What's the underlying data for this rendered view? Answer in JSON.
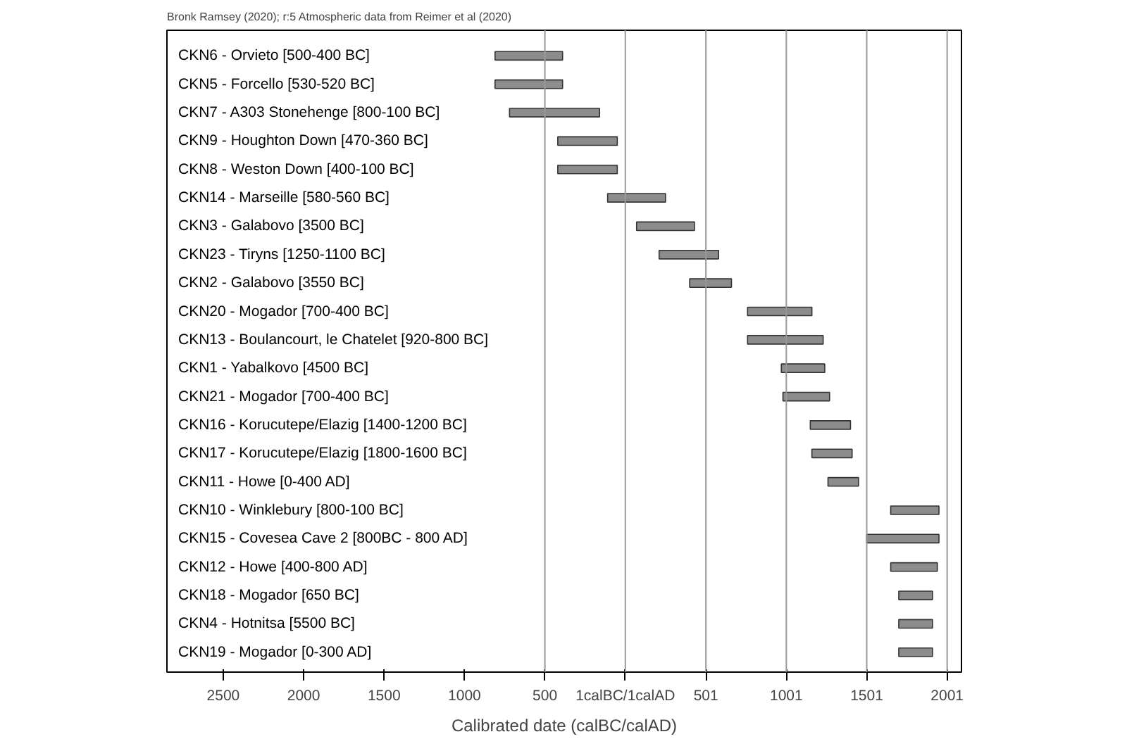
{
  "chart_data": {
    "type": "bar",
    "orientation": "horizontal",
    "subtitle": "Bronk Ramsey (2020); r:5 Atmospheric data from Reimer et al (2020)",
    "xlabel": "Calibrated date (calBC/calAD)",
    "categories": [
      "CKN6 - Orvieto [500-400 BC]",
      "CKN5 - Forcello [530-520 BC]",
      "CKN7 - A303 Stonehenge [800-100 BC]",
      "CKN9 - Houghton Down [470-360 BC]",
      "CKN8 - Weston Down [400-100 BC]",
      "CKN14 - Marseille [580-560 BC]",
      "CKN3 - Galabovo [3500 BC]",
      "CKN23 - Tiryns [1250-1100 BC]",
      "CKN2 - Galabovo [3550 BC]",
      "CKN20 - Mogador [700-400 BC]",
      "CKN13 - Boulancourt, le Chatelet [920-800 BC]",
      "CKN1 - Yabalkovo [4500 BC]",
      "CKN21 - Mogador [700-400 BC]",
      "CKN16 - Korucutepe/Elazig [1400-1200 BC]",
      "CKN17 - Korucutepe/Elazig [1800-1600 BC]",
      "CKN11 - Howe [0-400 AD]",
      "CKN10 - Winklebury [800-100 BC]",
      "CKN15 - Covesea Cave 2 [800BC - 800 AD]",
      "CKN12 - Howe [400-800 AD]",
      "CKN18 - Mogador [650 BC]",
      "CKN4 - Hotnitsa [5500 BC]",
      "CKN19 - Mogador [0-300 AD]"
    ],
    "base": [
      -810,
      -810,
      -720,
      -420,
      -420,
      -110,
      70,
      210,
      400,
      760,
      760,
      970,
      980,
      1150,
      1160,
      1260,
      1650,
      1500,
      1650,
      1700,
      1700,
      1700
    ],
    "values": [
      420,
      420,
      560,
      370,
      370,
      360,
      360,
      370,
      260,
      400,
      470,
      270,
      290,
      250,
      250,
      190,
      300,
      450,
      290,
      210,
      210,
      210
    ],
    "color": "#8c8c8c",
    "xlim": [
      -2850,
      2090
    ],
    "xticks": [
      {
        "value": -2500,
        "label": "2500"
      },
      {
        "value": -2000,
        "label": "2000"
      },
      {
        "value": -1500,
        "label": "1500"
      },
      {
        "value": -1000,
        "label": "1000"
      },
      {
        "value": -500,
        "label": "500"
      },
      {
        "value": 0,
        "label": "1calBC/1calAD"
      },
      501,
      1001,
      1501,
      2001
    ],
    "ref_lines": [
      {
        "axis": "x",
        "value": -500,
        "color": "#999999"
      },
      {
        "axis": "x",
        "value": 0,
        "color": "#999999"
      },
      {
        "axis": "x",
        "value": 501,
        "color": "#999999"
      },
      {
        "axis": "x",
        "value": 1001,
        "color": "#999999"
      },
      {
        "axis": "x",
        "value": 1501,
        "color": "#999999"
      },
      {
        "axis": "x",
        "value": 2001,
        "color": "#999999"
      }
    ],
    "grid": false
  }
}
